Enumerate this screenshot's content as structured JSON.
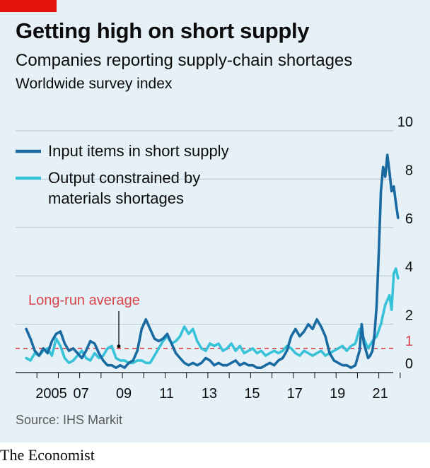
{
  "header": {
    "title": "Getting high on short supply",
    "subtitle": "Companies reporting supply-chain shortages",
    "unit": "Worldwide survey index"
  },
  "source": "Source: IHS Markit",
  "footer": "The Economist",
  "colors": {
    "brand_red": "#e3120b",
    "input_series": "#1a6aa2",
    "output_series": "#38c2d8",
    "average_line": "#db444b",
    "background": "#e5f0f7"
  },
  "chart_data": {
    "type": "line",
    "ylim": [
      0,
      10
    ],
    "y_ticks": [
      0,
      2,
      4,
      6,
      8,
      10
    ],
    "x_tick_labels": [
      "2005",
      "07",
      "09",
      "11",
      "13",
      "15",
      "17",
      "19",
      "21"
    ],
    "x_tick_years": [
      2005,
      2007,
      2009,
      2011,
      2013,
      2015,
      2017,
      2019,
      2021
    ],
    "xlim": [
      2004.0,
      2022.8
    ],
    "grid": true,
    "legend_position": "top-left",
    "reference_line": {
      "label": "Long-run average",
      "value": 1,
      "value_label": "1"
    },
    "series": [
      {
        "name": "Input items in short supply",
        "x": [
          2004.5,
          2004.7,
          2004.9,
          2005.1,
          2005.3,
          2005.5,
          2005.7,
          2005.9,
          2006.1,
          2006.3,
          2006.5,
          2006.7,
          2006.9,
          2007.1,
          2007.3,
          2007.5,
          2007.7,
          2007.9,
          2008.1,
          2008.3,
          2008.5,
          2008.7,
          2008.9,
          2009.1,
          2009.3,
          2009.5,
          2009.7,
          2009.9,
          2010.1,
          2010.3,
          2010.5,
          2010.7,
          2010.9,
          2011.1,
          2011.3,
          2011.5,
          2011.7,
          2011.9,
          2012.1,
          2012.3,
          2012.5,
          2012.7,
          2012.9,
          2013.1,
          2013.3,
          2013.5,
          2013.7,
          2013.9,
          2014.1,
          2014.3,
          2014.5,
          2014.7,
          2014.9,
          2015.1,
          2015.3,
          2015.5,
          2015.7,
          2015.9,
          2016.1,
          2016.3,
          2016.5,
          2016.7,
          2016.9,
          2017.1,
          2017.3,
          2017.5,
          2017.7,
          2017.9,
          2018.1,
          2018.3,
          2018.5,
          2018.7,
          2018.9,
          2019.1,
          2019.3,
          2019.5,
          2019.7,
          2019.9,
          2020.1,
          2020.2,
          2020.3,
          2020.5,
          2020.6,
          2020.7,
          2020.8,
          2020.9,
          2021.0,
          2021.1,
          2021.2,
          2021.3,
          2021.4,
          2021.5,
          2021.6,
          2021.7,
          2021.8,
          2021.9
        ],
        "values": [
          1.8,
          1.4,
          0.9,
          0.7,
          1.0,
          0.8,
          1.3,
          1.6,
          1.7,
          1.2,
          0.9,
          1.0,
          0.8,
          0.6,
          0.9,
          1.3,
          1.2,
          0.8,
          0.5,
          0.3,
          0.3,
          0.2,
          0.3,
          0.2,
          0.4,
          0.5,
          0.9,
          1.8,
          2.2,
          1.8,
          1.4,
          1.3,
          1.4,
          1.6,
          1.2,
          0.8,
          0.6,
          0.4,
          0.3,
          0.4,
          0.3,
          0.4,
          0.6,
          0.5,
          0.3,
          0.4,
          0.3,
          0.3,
          0.4,
          0.5,
          0.3,
          0.4,
          0.3,
          0.3,
          0.2,
          0.2,
          0.3,
          0.4,
          0.3,
          0.5,
          0.6,
          0.9,
          1.5,
          1.8,
          1.5,
          1.7,
          2.0,
          1.8,
          2.2,
          1.9,
          1.5,
          0.8,
          0.5,
          0.4,
          0.3,
          0.3,
          0.2,
          0.3,
          0.9,
          2.0,
          1.2,
          0.6,
          0.7,
          0.9,
          1.6,
          2.8,
          5.0,
          7.5,
          8.5,
          8.1,
          9.0,
          8.3,
          7.5,
          7.7,
          7.0,
          6.4
        ]
      },
      {
        "name": "Output constrained by materials shortages",
        "x": [
          2004.5,
          2004.7,
          2004.9,
          2005.1,
          2005.3,
          2005.5,
          2005.7,
          2005.9,
          2006.1,
          2006.3,
          2006.5,
          2006.7,
          2006.9,
          2007.1,
          2007.3,
          2007.5,
          2007.7,
          2007.9,
          2008.1,
          2008.3,
          2008.5,
          2008.7,
          2008.9,
          2009.1,
          2009.3,
          2009.5,
          2009.7,
          2009.9,
          2010.1,
          2010.3,
          2010.5,
          2010.7,
          2010.9,
          2011.1,
          2011.3,
          2011.5,
          2011.7,
          2011.9,
          2012.1,
          2012.3,
          2012.5,
          2012.7,
          2012.9,
          2013.1,
          2013.3,
          2013.5,
          2013.7,
          2013.9,
          2014.1,
          2014.3,
          2014.5,
          2014.7,
          2014.9,
          2015.1,
          2015.3,
          2015.5,
          2015.7,
          2015.9,
          2016.1,
          2016.3,
          2016.5,
          2016.7,
          2016.9,
          2017.1,
          2017.3,
          2017.5,
          2017.7,
          2017.9,
          2018.1,
          2018.3,
          2018.5,
          2018.7,
          2018.9,
          2019.1,
          2019.3,
          2019.5,
          2019.7,
          2019.9,
          2020.1,
          2020.3,
          2020.5,
          2020.7,
          2020.9,
          2021.1,
          2021.3,
          2021.5,
          2021.6,
          2021.7,
          2021.8,
          2021.9
        ],
        "values": [
          0.6,
          0.5,
          0.8,
          0.7,
          0.9,
          1.0,
          0.7,
          1.4,
          1.1,
          0.6,
          0.4,
          0.5,
          0.7,
          0.9,
          0.6,
          0.5,
          0.8,
          0.6,
          0.7,
          1.0,
          1.1,
          0.6,
          0.5,
          0.5,
          0.4,
          0.4,
          0.5,
          0.5,
          0.4,
          0.4,
          0.7,
          1.0,
          1.3,
          1.5,
          1.2,
          1.3,
          1.5,
          1.9,
          1.6,
          1.8,
          1.3,
          1.0,
          0.9,
          1.2,
          1.1,
          1.2,
          0.9,
          1.0,
          1.2,
          0.9,
          1.1,
          0.8,
          0.9,
          1.0,
          0.8,
          0.9,
          0.7,
          0.8,
          0.9,
          0.8,
          0.9,
          1.1,
          1.0,
          0.8,
          0.7,
          0.9,
          0.8,
          0.7,
          0.8,
          0.9,
          0.7,
          0.8,
          0.9,
          1.0,
          1.1,
          0.9,
          1.1,
          1.2,
          1.8,
          1.4,
          1.0,
          1.3,
          1.5,
          2.0,
          2.8,
          3.2,
          2.6,
          4.1,
          4.3,
          3.9
        ]
      }
    ]
  }
}
